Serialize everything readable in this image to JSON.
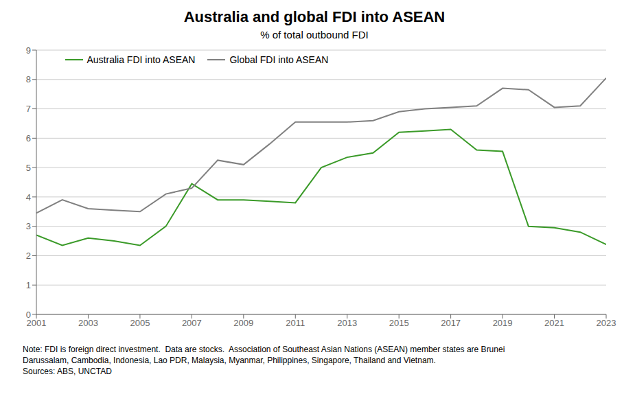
{
  "chart_data": {
    "type": "line",
    "title": "Australia and global FDI into ASEAN",
    "subtitle": "% of total outbound FDI",
    "note": "Note: FDI is foreign direct investment.  Data are stocks.  Association of Southeast Asian Nations (ASEAN) member states are Brunei\nDarussalam, Cambodia, Indonesia, Lao PDR, Malaysia, Myanmar, Philippines, Singapore, Thailand and Vietnam.\nSources: ABS, UNCTAD",
    "x": [
      2001,
      2002,
      2003,
      2004,
      2005,
      2006,
      2007,
      2008,
      2009,
      2010,
      2011,
      2012,
      2013,
      2014,
      2015,
      2016,
      2017,
      2018,
      2019,
      2020,
      2021,
      2022,
      2023
    ],
    "series": [
      {
        "name": "Australia FDI into ASEAN",
        "color": "#3a9a28",
        "values": [
          2.7,
          2.35,
          2.6,
          2.5,
          2.35,
          3.0,
          4.45,
          3.9,
          3.9,
          3.85,
          3.8,
          5.0,
          5.35,
          5.5,
          6.2,
          6.25,
          6.3,
          5.6,
          5.55,
          3.0,
          2.95,
          2.8,
          2.38
        ]
      },
      {
        "name": "Global FDI into ASEAN",
        "color": "#808080",
        "values": [
          3.45,
          3.9,
          3.6,
          3.55,
          3.5,
          4.1,
          4.3,
          5.25,
          5.1,
          5.8,
          6.55,
          6.55,
          6.55,
          6.6,
          6.9,
          7.0,
          7.05,
          7.1,
          7.7,
          7.65,
          7.05,
          7.1,
          8.05
        ]
      }
    ],
    "xlim": [
      2001,
      2023
    ],
    "xticks": [
      2001,
      2003,
      2005,
      2007,
      2009,
      2011,
      2013,
      2015,
      2017,
      2019,
      2021,
      2023
    ],
    "ylim": [
      0,
      9
    ],
    "yticks": [
      0,
      1,
      2,
      3,
      4,
      5,
      6,
      7,
      8,
      9
    ],
    "grid": "y",
    "legend": "upper left"
  }
}
